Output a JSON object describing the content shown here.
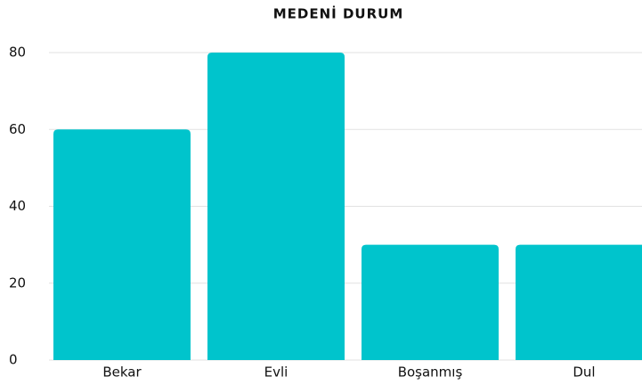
{
  "chart_data": {
    "type": "bar",
    "title": "MEDENİ DURUM",
    "categories": [
      "Bekar",
      "Evli",
      "Boşanmış",
      "Dul"
    ],
    "values": [
      60,
      80,
      30,
      30
    ],
    "color": "#00c4cc",
    "ylim": [
      0,
      80
    ],
    "yticks": [
      0,
      20,
      40,
      60,
      80
    ],
    "grid": true
  }
}
